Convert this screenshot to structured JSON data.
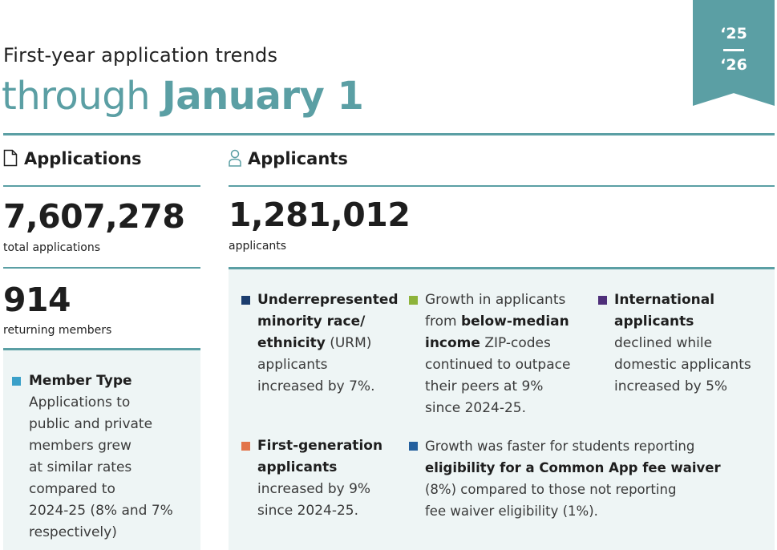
{
  "header": {
    "subtitle": "First-year application trends",
    "title_light": "through ",
    "title_bold": "January 1",
    "year_start": "‘25",
    "year_end": "‘26"
  },
  "applications": {
    "heading": "Applications",
    "total_value": "7,607,278",
    "total_label": "total applications",
    "returning_value": "914",
    "returning_label": "returning members",
    "member_type": {
      "title": "Member Type",
      "lines": [
        "Applications to",
        "public and private",
        "members grew",
        "at similar rates",
        "compared to",
        "2024-25 (8% and 7%",
        "respectively)"
      ],
      "color": "#3aa0c9"
    }
  },
  "applicants": {
    "heading": "Applicants",
    "total_value": "1,281,012",
    "total_label": "applicants",
    "urm": {
      "bold1": "Underrepresented",
      "bold2": "minority race/",
      "bold3": "ethnicity",
      "rest3": " (URM)",
      "line4": "applicants",
      "line5": "increased by 7%.",
      "color": "#1b3d6e"
    },
    "income": {
      "line1": "Growth in applicants",
      "pre2": "from ",
      "bold2": "below-median",
      "bold3": "income",
      "rest3": " ZIP-codes",
      "line4": "continued to outpace",
      "line5": "their peers at 9%",
      "line6": "since 2024-25.",
      "color": "#8db33a"
    },
    "international": {
      "bold1": "International",
      "bold2": "applicants",
      "line3": "declined while",
      "line4": "domestic applicants",
      "line5": "increased by 5%",
      "color": "#4e2f7a"
    },
    "first_gen": {
      "bold1": "First-generation",
      "bold2": "applicants",
      "line3": "increased by 9%",
      "line4": "since 2024-25.",
      "color": "#e2744a"
    },
    "fee_waiver": {
      "line1": "Growth was faster for students reporting",
      "bold2": "eligibility for a Common App fee waiver",
      "line3": "(8%) compared to those not reporting",
      "line4": "fee waiver eligibility (1%).",
      "color": "#24609e"
    }
  },
  "colors": {
    "accent": "#5b9fa4",
    "panel": "#eef5f5"
  }
}
